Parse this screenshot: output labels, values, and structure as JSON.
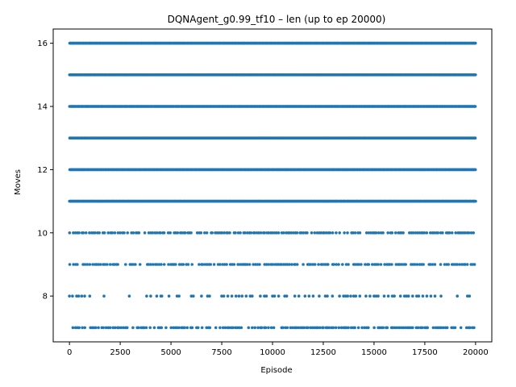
{
  "chart_data": {
    "type": "scatter",
    "title": "DQNAgent_g0.99_tf10 – len (up to ep 20000)",
    "xlabel": "Episode",
    "ylabel": "Moves",
    "xlim": [
      -800,
      20800
    ],
    "ylim": [
      6.55,
      16.45
    ],
    "xticks": [
      0,
      2500,
      5000,
      7500,
      10000,
      12500,
      15000,
      17500,
      20000
    ],
    "yticks": [
      8,
      10,
      12,
      14,
      16
    ],
    "grid": false,
    "marker_color": "#1f77b4",
    "series": [
      {
        "y": 16,
        "density": "dense",
        "x_range": [
          0,
          20000
        ]
      },
      {
        "y": 15,
        "density": "dense",
        "x_range": [
          0,
          20000
        ]
      },
      {
        "y": 14,
        "density": "dense",
        "x_range": [
          0,
          20000
        ]
      },
      {
        "y": 13,
        "density": "dense",
        "x_range": [
          0,
          20000
        ]
      },
      {
        "y": 12,
        "density": "dense",
        "x_range": [
          0,
          20000
        ]
      },
      {
        "y": 11,
        "density": "dense",
        "x_range": [
          0,
          20000
        ]
      },
      {
        "y": 10,
        "density": "medium",
        "x_range": [
          0,
          20000
        ]
      },
      {
        "y": 9,
        "density": "medium",
        "x_range": [
          0,
          20000
        ]
      },
      {
        "y": 8,
        "density": "sparse",
        "x_range": [
          0,
          20000
        ],
        "x": [
          0,
          150,
          350,
          450,
          600,
          750,
          1000,
          1700,
          2950,
          3800,
          4000,
          4300,
          4500,
          4550,
          4900,
          5300,
          5400,
          6000,
          6100,
          6500,
          6800,
          6900,
          7500,
          7600,
          7800,
          8000,
          8200,
          8350,
          8500,
          8700,
          8900,
          9000,
          9400,
          9600,
          9700,
          10000,
          10100,
          10300,
          10600,
          10700,
          11100,
          11300,
          11600,
          11800,
          12000,
          12300,
          12600,
          12700,
          12950,
          13300,
          13500,
          13600,
          13700,
          13850,
          14000,
          14100,
          14300,
          14600,
          14800,
          15000,
          15100,
          15200,
          15500,
          15700,
          15900,
          16000,
          16300,
          16500,
          16600,
          16700,
          16900,
          17100,
          17200,
          17400,
          17600,
          17800,
          18000,
          18300,
          19100,
          19600,
          19700
        ]
      },
      {
        "y": 7,
        "density": "medium",
        "x_range": [
          150,
          20000
        ]
      }
    ]
  }
}
